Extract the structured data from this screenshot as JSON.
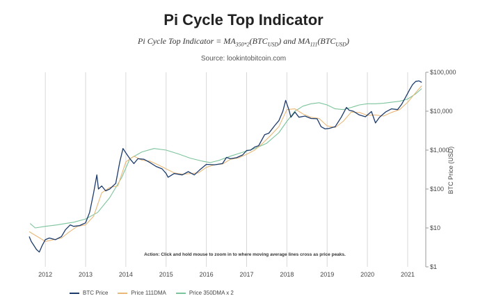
{
  "header": {
    "title": "Pi Cycle Top Indicator",
    "formula": "Pi Cycle Top Indicator = MA350*2(BTCUSD) and MA111(BTCUSD)",
    "formula_parts": {
      "lead": "Pi Cycle Top Indicator = MA",
      "sub1": "350*2",
      "mid1": "(BTC",
      "sub2": "USD",
      "mid2": ") and MA",
      "sub3": "111",
      "mid3": "(BTC",
      "sub4": "USD",
      "tail": ")"
    },
    "source": "Source: lookintobitcoin.com"
  },
  "note": "Action: Click and hold mouse to zoom in to where moving average lines cross as price peaks.",
  "colors": {
    "price": "#1b3a6b",
    "dma111": "#e8b878",
    "dma350x2": "#7cc49b",
    "grid": "#d8d8d8"
  },
  "legend": [
    {
      "label": "BTC Price",
      "color": "#1b3a6b"
    },
    {
      "label": "Price 111DMA",
      "color": "#e8b878"
    },
    {
      "label": "Price 350DMA x 2",
      "color": "#7cc49b"
    }
  ],
  "chart_data": {
    "type": "line",
    "title": "Pi Cycle Top Indicator",
    "xlabel": "",
    "ylabel": "BTC Price (USD)",
    "yscale": "log",
    "ylim": [
      1,
      100000
    ],
    "xlim": [
      2011.6,
      2021.45
    ],
    "grid": "vertical",
    "legend_position": "bottom",
    "x_ticks": [
      "2012",
      "2013",
      "2014",
      "2015",
      "2016",
      "2017",
      "2018",
      "2019",
      "2020",
      "2021"
    ],
    "y_ticks": [
      {
        "value": 1,
        "label": "$1"
      },
      {
        "value": 10,
        "label": "$10"
      },
      {
        "value": 100,
        "label": "$100"
      },
      {
        "value": 1000,
        "label": "$1,000"
      },
      {
        "value": 10000,
        "label": "$10,000"
      },
      {
        "value": 100000,
        "label": "$100,000"
      }
    ],
    "series": [
      {
        "name": "BTC Price",
        "key": "price",
        "points": [
          [
            2011.6,
            6
          ],
          [
            2011.65,
            4.5
          ],
          [
            2011.72,
            3.5
          ],
          [
            2011.78,
            2.8
          ],
          [
            2011.85,
            2.4
          ],
          [
            2011.92,
            3.5
          ],
          [
            2012.0,
            5
          ],
          [
            2012.1,
            5.5
          ],
          [
            2012.25,
            5
          ],
          [
            2012.4,
            6
          ],
          [
            2012.5,
            9
          ],
          [
            2012.62,
            12
          ],
          [
            2012.7,
            11
          ],
          [
            2012.85,
            11.5
          ],
          [
            2013.0,
            13.5
          ],
          [
            2013.1,
            25
          ],
          [
            2013.2,
            80
          ],
          [
            2013.28,
            230
          ],
          [
            2013.32,
            100
          ],
          [
            2013.4,
            120
          ],
          [
            2013.5,
            90
          ],
          [
            2013.6,
            100
          ],
          [
            2013.75,
            140
          ],
          [
            2013.85,
            500
          ],
          [
            2013.93,
            1100
          ],
          [
            2014.0,
            850
          ],
          [
            2014.1,
            600
          ],
          [
            2014.2,
            450
          ],
          [
            2014.3,
            600
          ],
          [
            2014.45,
            580
          ],
          [
            2014.6,
            480
          ],
          [
            2014.75,
            380
          ],
          [
            2014.9,
            330
          ],
          [
            2015.0,
            250
          ],
          [
            2015.05,
            200
          ],
          [
            2015.2,
            250
          ],
          [
            2015.4,
            230
          ],
          [
            2015.55,
            280
          ],
          [
            2015.7,
            230
          ],
          [
            2015.85,
            320
          ],
          [
            2016.0,
            430
          ],
          [
            2016.2,
            420
          ],
          [
            2016.4,
            450
          ],
          [
            2016.5,
            650
          ],
          [
            2016.6,
            600
          ],
          [
            2016.75,
            640
          ],
          [
            2016.9,
            750
          ],
          [
            2017.0,
            980
          ],
          [
            2017.1,
            1000
          ],
          [
            2017.2,
            1200
          ],
          [
            2017.3,
            1300
          ],
          [
            2017.45,
            2500
          ],
          [
            2017.55,
            2700
          ],
          [
            2017.7,
            4300
          ],
          [
            2017.8,
            5700
          ],
          [
            2017.9,
            10000
          ],
          [
            2017.97,
            19000
          ],
          [
            2018.05,
            11000
          ],
          [
            2018.1,
            7000
          ],
          [
            2018.2,
            9500
          ],
          [
            2018.3,
            7000
          ],
          [
            2018.45,
            7500
          ],
          [
            2018.6,
            6500
          ],
          [
            2018.75,
            6400
          ],
          [
            2018.85,
            4000
          ],
          [
            2018.95,
            3500
          ],
          [
            2019.05,
            3600
          ],
          [
            2019.2,
            4000
          ],
          [
            2019.35,
            7000
          ],
          [
            2019.48,
            12500
          ],
          [
            2019.55,
            10500
          ],
          [
            2019.65,
            10000
          ],
          [
            2019.8,
            8000
          ],
          [
            2019.95,
            7200
          ],
          [
            2020.1,
            9800
          ],
          [
            2020.2,
            5000
          ],
          [
            2020.3,
            7000
          ],
          [
            2020.45,
            9500
          ],
          [
            2020.6,
            11500
          ],
          [
            2020.75,
            11000
          ],
          [
            2020.85,
            15000
          ],
          [
            2020.95,
            23000
          ],
          [
            2021.05,
            36000
          ],
          [
            2021.12,
            48000
          ],
          [
            2021.2,
            58000
          ],
          [
            2021.28,
            60000
          ],
          [
            2021.35,
            55000
          ]
        ]
      },
      {
        "name": "Price 111DMA",
        "key": "dma111",
        "points": [
          [
            2011.6,
            8
          ],
          [
            2011.8,
            6
          ],
          [
            2012.0,
            4.5
          ],
          [
            2012.2,
            5
          ],
          [
            2012.4,
            5.5
          ],
          [
            2012.6,
            8
          ],
          [
            2012.8,
            11
          ],
          [
            2013.0,
            12
          ],
          [
            2013.2,
            20
          ],
          [
            2013.4,
            80
          ],
          [
            2013.6,
            110
          ],
          [
            2013.8,
            120
          ],
          [
            2014.0,
            500
          ],
          [
            2014.2,
            700
          ],
          [
            2014.4,
            550
          ],
          [
            2014.6,
            520
          ],
          [
            2014.8,
            420
          ],
          [
            2015.0,
            330
          ],
          [
            2015.2,
            260
          ],
          [
            2015.4,
            240
          ],
          [
            2015.6,
            250
          ],
          [
            2015.8,
            260
          ],
          [
            2016.0,
            360
          ],
          [
            2016.2,
            420
          ],
          [
            2016.4,
            440
          ],
          [
            2016.6,
            580
          ],
          [
            2016.8,
            630
          ],
          [
            2017.0,
            780
          ],
          [
            2017.2,
            1000
          ],
          [
            2017.4,
            1500
          ],
          [
            2017.6,
            2400
          ],
          [
            2017.8,
            4000
          ],
          [
            2018.0,
            11000
          ],
          [
            2018.2,
            11500
          ],
          [
            2018.4,
            8500
          ],
          [
            2018.6,
            7000
          ],
          [
            2018.8,
            6500
          ],
          [
            2019.0,
            4200
          ],
          [
            2019.2,
            3800
          ],
          [
            2019.4,
            5500
          ],
          [
            2019.6,
            9500
          ],
          [
            2019.8,
            9300
          ],
          [
            2020.0,
            7800
          ],
          [
            2020.2,
            8000
          ],
          [
            2020.4,
            7500
          ],
          [
            2020.6,
            9300
          ],
          [
            2020.8,
            11000
          ],
          [
            2021.0,
            17000
          ],
          [
            2021.2,
            30000
          ],
          [
            2021.35,
            45000
          ]
        ]
      },
      {
        "name": "Price 350DMA x 2",
        "key": "dma350x2",
        "points": [
          [
            2011.62,
            13
          ],
          [
            2011.75,
            10
          ],
          [
            2012.0,
            11
          ],
          [
            2012.3,
            12
          ],
          [
            2012.5,
            13
          ],
          [
            2012.7,
            14
          ],
          [
            2013.0,
            17
          ],
          [
            2013.3,
            25
          ],
          [
            2013.6,
            60
          ],
          [
            2013.9,
            200
          ],
          [
            2014.1,
            600
          ],
          [
            2014.4,
            900
          ],
          [
            2014.7,
            1100
          ],
          [
            2015.0,
            1000
          ],
          [
            2015.3,
            800
          ],
          [
            2015.6,
            620
          ],
          [
            2015.9,
            520
          ],
          [
            2016.1,
            480
          ],
          [
            2016.3,
            540
          ],
          [
            2016.6,
            700
          ],
          [
            2016.9,
            880
          ],
          [
            2017.2,
            1100
          ],
          [
            2017.5,
            1500
          ],
          [
            2017.8,
            2800
          ],
          [
            2018.0,
            5500
          ],
          [
            2018.2,
            10000
          ],
          [
            2018.4,
            13500
          ],
          [
            2018.6,
            15500
          ],
          [
            2018.8,
            16500
          ],
          [
            2019.0,
            14500
          ],
          [
            2019.2,
            11500
          ],
          [
            2019.4,
            11000
          ],
          [
            2019.6,
            12500
          ],
          [
            2019.8,
            14500
          ],
          [
            2020.0,
            15500
          ],
          [
            2020.2,
            15500
          ],
          [
            2020.4,
            16000
          ],
          [
            2020.6,
            17000
          ],
          [
            2020.8,
            18000
          ],
          [
            2021.0,
            20500
          ],
          [
            2021.2,
            28000
          ],
          [
            2021.35,
            38000
          ]
        ]
      }
    ]
  }
}
